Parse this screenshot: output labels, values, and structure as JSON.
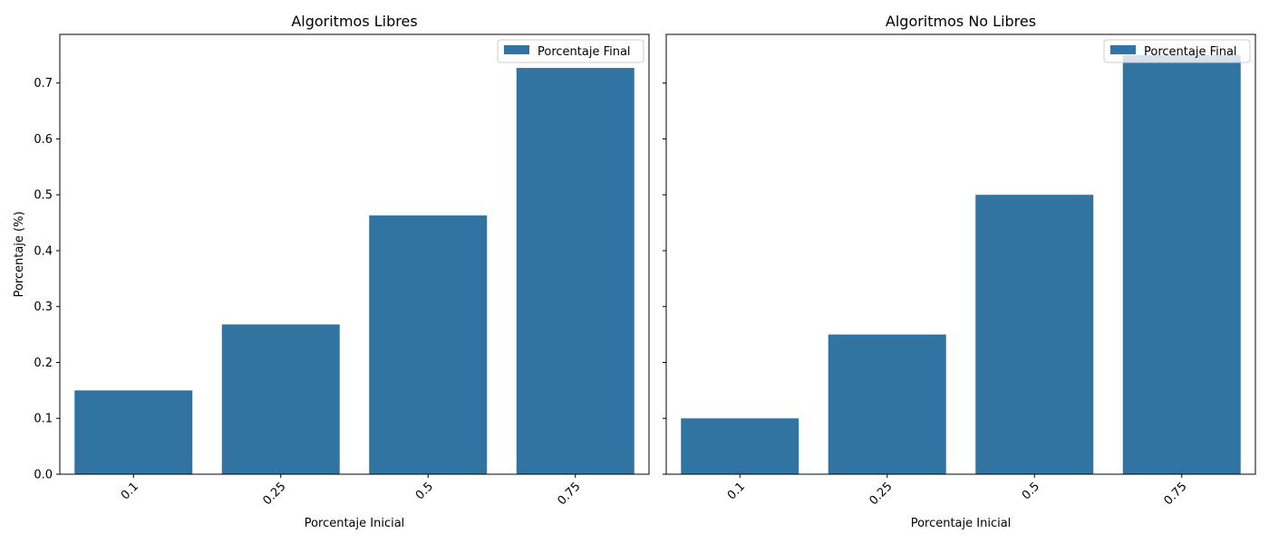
{
  "chart_data": [
    {
      "type": "bar",
      "title": "Algoritmos Libres",
      "xlabel": "Porcentaje Inicial",
      "ylabel": "Porcentaje (%)",
      "categories": [
        "0.1",
        "0.25",
        "0.5",
        "0.75"
      ],
      "series": [
        {
          "name": "Porcentaje Final",
          "values": [
            0.15,
            0.268,
            0.463,
            0.727
          ]
        }
      ],
      "ylim": [
        0,
        0.787
      ],
      "yticks": [
        "0.0",
        "0.1",
        "0.2",
        "0.3",
        "0.4",
        "0.5",
        "0.6",
        "0.7"
      ],
      "legend": "top-right",
      "grid": false,
      "bar_color": "#3274a1",
      "xtick_rotation": -45
    },
    {
      "type": "bar",
      "title": "Algoritmos No Libres",
      "xlabel": "Porcentaje Inicial",
      "ylabel": "",
      "categories": [
        "0.1",
        "0.25",
        "0.5",
        "0.75"
      ],
      "series": [
        {
          "name": "Porcentaje Final",
          "values": [
            0.1,
            0.25,
            0.5,
            0.75
          ]
        }
      ],
      "ylim": [
        0,
        0.787
      ],
      "yticks": [
        "0.0",
        "0.1",
        "0.2",
        "0.3",
        "0.4",
        "0.5",
        "0.6",
        "0.7"
      ],
      "legend": "top-right",
      "grid": false,
      "bar_color": "#3274a1",
      "xtick_rotation": -45
    }
  ]
}
